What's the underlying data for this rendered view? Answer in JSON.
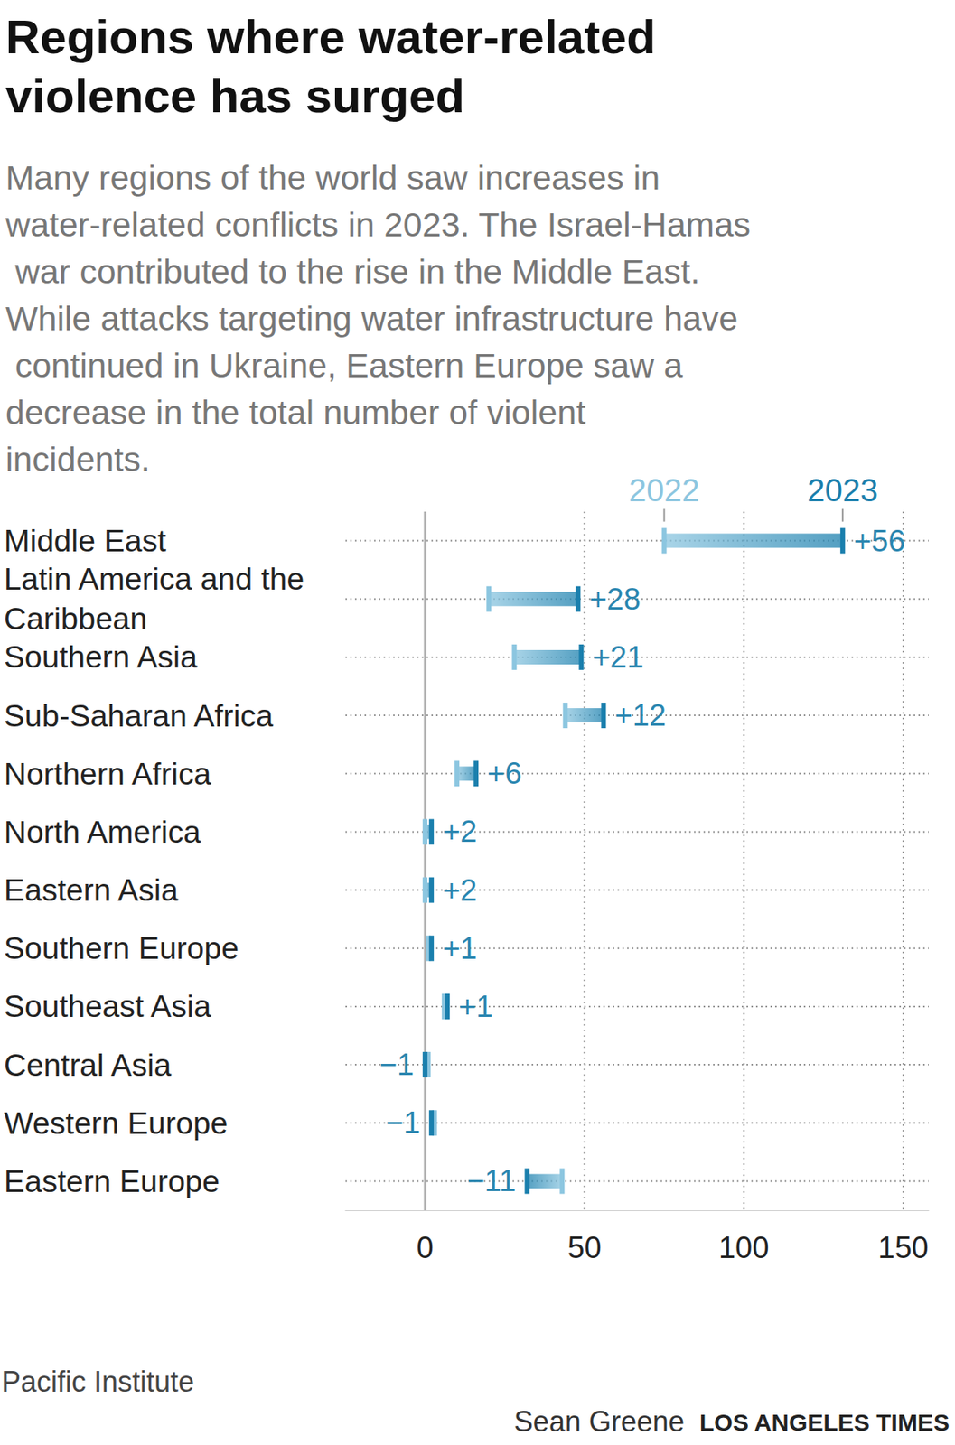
{
  "chart_data": {
    "type": "dumbbell",
    "title": "Regions where water-related violence has surged",
    "subtitle": "Many regions of the world saw increases in water-related conflicts in 2023. The Israel-Hamas war contributed to the rise in the Middle East. While attacks targeting water infrastructure have continued in Ukraine, Eastern Europe saw a decrease in the total number of violent incidents.",
    "source": "Pacific Institute",
    "credit": [
      "Sean Greene",
      "LOS ANGELES TIMES"
    ],
    "orientation": "horizontal",
    "grid": true,
    "categories": [
      "Middle East",
      "Latin America and the Caribbean",
      "Southern Asia",
      "Sub-Saharan Africa",
      "Northern Africa",
      "North America",
      "Eastern Asia",
      "Southern Europe",
      "Southeast Asia",
      "Central Asia",
      "Western Europe",
      "Eastern Europe"
    ],
    "series": [
      {
        "name": "2022",
        "color": "#8cc6e0",
        "values": [
          75,
          20,
          28,
          44,
          10,
          0,
          0,
          1,
          6,
          1,
          3,
          43
        ]
      },
      {
        "name": "2023",
        "color": "#1a7fad",
        "values": [
          131,
          48,
          49,
          56,
          16,
          2,
          2,
          2,
          7,
          0,
          2,
          32
        ]
      }
    ],
    "changes": [
      56,
      28,
      21,
      12,
      6,
      2,
      2,
      1,
      1,
      -1,
      -1,
      -11
    ],
    "change_labels": [
      "+56",
      "+28",
      "+21",
      "+12",
      "+6",
      "+2",
      "+2",
      "+1",
      "+1",
      "−1",
      "−1",
      "−11"
    ],
    "xlim": [
      -25,
      158
    ],
    "xticks": [
      0,
      50,
      100,
      150
    ]
  }
}
